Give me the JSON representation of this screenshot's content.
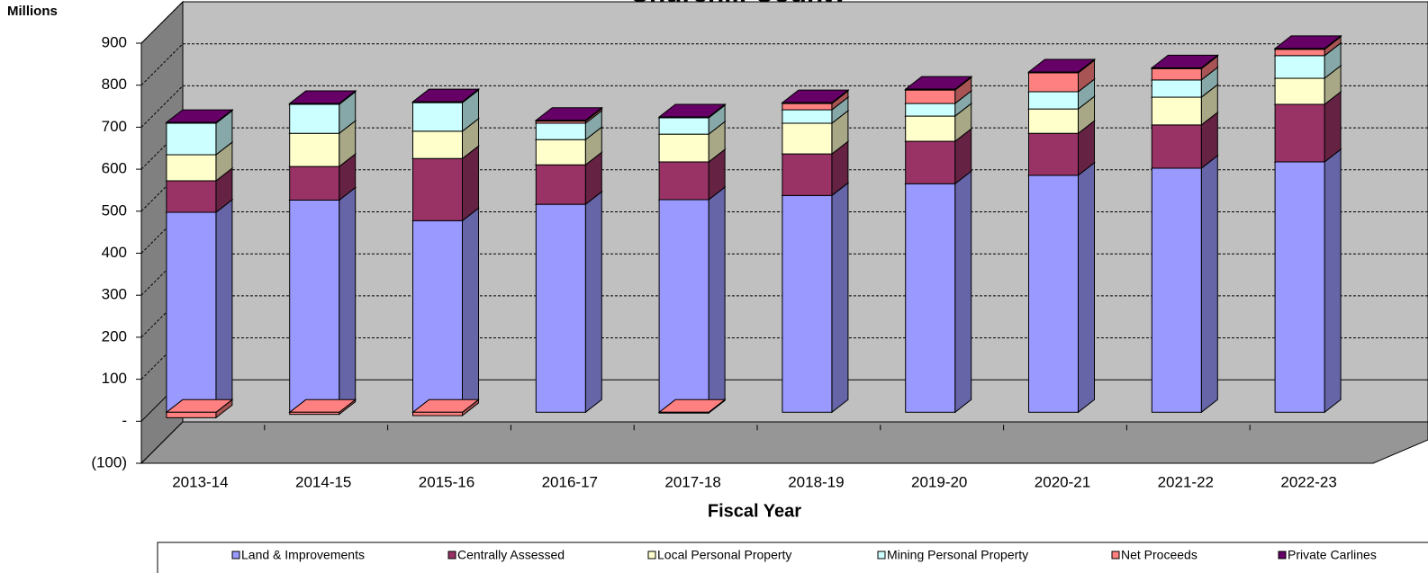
{
  "chart_data": {
    "type": "bar3d_stacked",
    "title": "Churchill County",
    "y_label": "Millions",
    "x_label": "Fiscal Year",
    "categories": [
      "2013-14",
      "2014-15",
      "2015-16",
      "2016-17",
      "2017-18",
      "2018-19",
      "2019-20",
      "2020-21",
      "2021-22",
      "2022-23"
    ],
    "series": [
      {
        "name": "Land & Improvements",
        "color": "#9999ff",
        "values": [
          476,
          505,
          456,
          495,
          506,
          516,
          544,
          564,
          581,
          596
        ]
      },
      {
        "name": "Centrally Assessed",
        "color": "#993366",
        "values": [
          75,
          80,
          148,
          94,
          90,
          99,
          101,
          100,
          103,
          137
        ]
      },
      {
        "name": "Local Personal Property",
        "color": "#ffffcc",
        "values": [
          62,
          79,
          65,
          60,
          66,
          73,
          60,
          58,
          66,
          62
        ]
      },
      {
        "name": "Mining Personal Property",
        "color": "#ccffff",
        "values": [
          75,
          69,
          68,
          39,
          39,
          32,
          30,
          41,
          41,
          54
        ]
      },
      {
        "name": "Net Proceeds",
        "color": "#ff8080",
        "values": [
          -13,
          -5,
          -8,
          5,
          -2,
          15,
          32,
          45,
          27,
          15
        ]
      },
      {
        "name": "Private Carlines",
        "color": "#660066",
        "values": [
          2,
          2,
          2,
          2,
          2,
          2,
          2,
          2,
          2,
          2
        ]
      }
    ],
    "ylim": [
      -100,
      900
    ],
    "yticks": [
      {
        "value": -100,
        "label": "(100)"
      },
      {
        "value": 0,
        "label": "-"
      },
      100,
      200,
      300,
      400,
      500,
      600,
      700,
      800,
      900
    ],
    "grid": true,
    "legend": "bottom"
  }
}
